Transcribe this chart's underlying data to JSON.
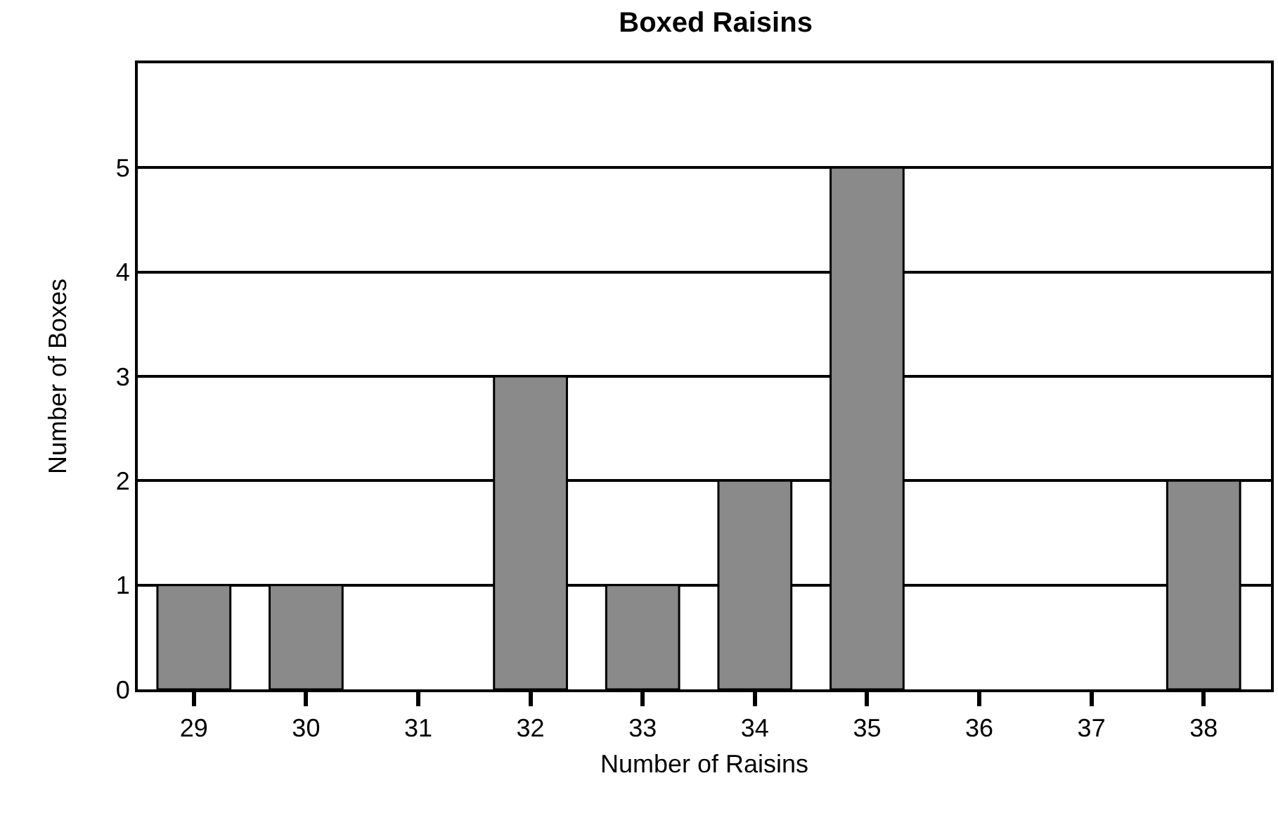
{
  "chart_data": {
    "type": "bar",
    "title": "Boxed Raisins",
    "xlabel": "Number of Raisins",
    "ylabel": "Number of Boxes",
    "categories": [
      "29",
      "30",
      "31",
      "32",
      "33",
      "34",
      "35",
      "36",
      "37",
      "38"
    ],
    "values": [
      1,
      1,
      0,
      3,
      1,
      2,
      5,
      0,
      0,
      2
    ],
    "color": "#8a8a8a",
    "ylim": [
      0,
      6
    ],
    "yticks": [
      0,
      1,
      2,
      3,
      4,
      5
    ],
    "grid": "y",
    "legend": false
  }
}
